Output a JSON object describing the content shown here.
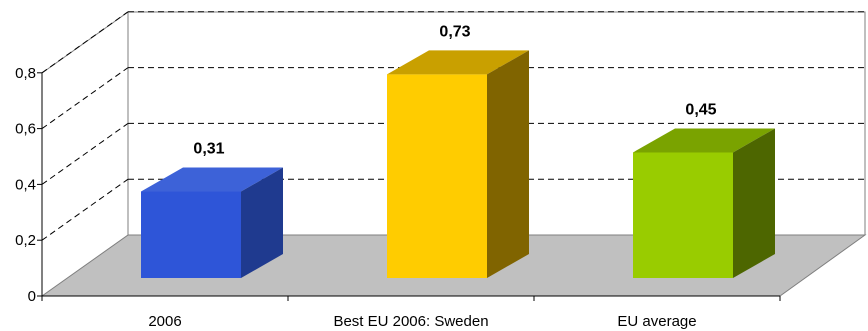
{
  "chart_data": {
    "type": "bar",
    "categories": [
      "2006",
      "Best EU 2006: Sweden",
      "EU average"
    ],
    "values": [
      0.31,
      0.73,
      0.45
    ],
    "data_labels": [
      "0,31",
      "0,73",
      "0,45"
    ],
    "y_ticks": [
      "0",
      "0,2",
      "0,4",
      "0,6",
      "0,8"
    ],
    "ylim": [
      0,
      0.8
    ],
    "grid": true,
    "three_d": true,
    "colors": {
      "bars": [
        "#2E55D8",
        "#FFCC00",
        "#99CC00"
      ],
      "bar_tops": [
        "#3D62D8",
        "#C9A000",
        "#7AA300"
      ],
      "bar_sides": [
        "#1F3A8F",
        "#806400",
        "#4D6600"
      ],
      "floor": "#C0C0C0"
    }
  }
}
